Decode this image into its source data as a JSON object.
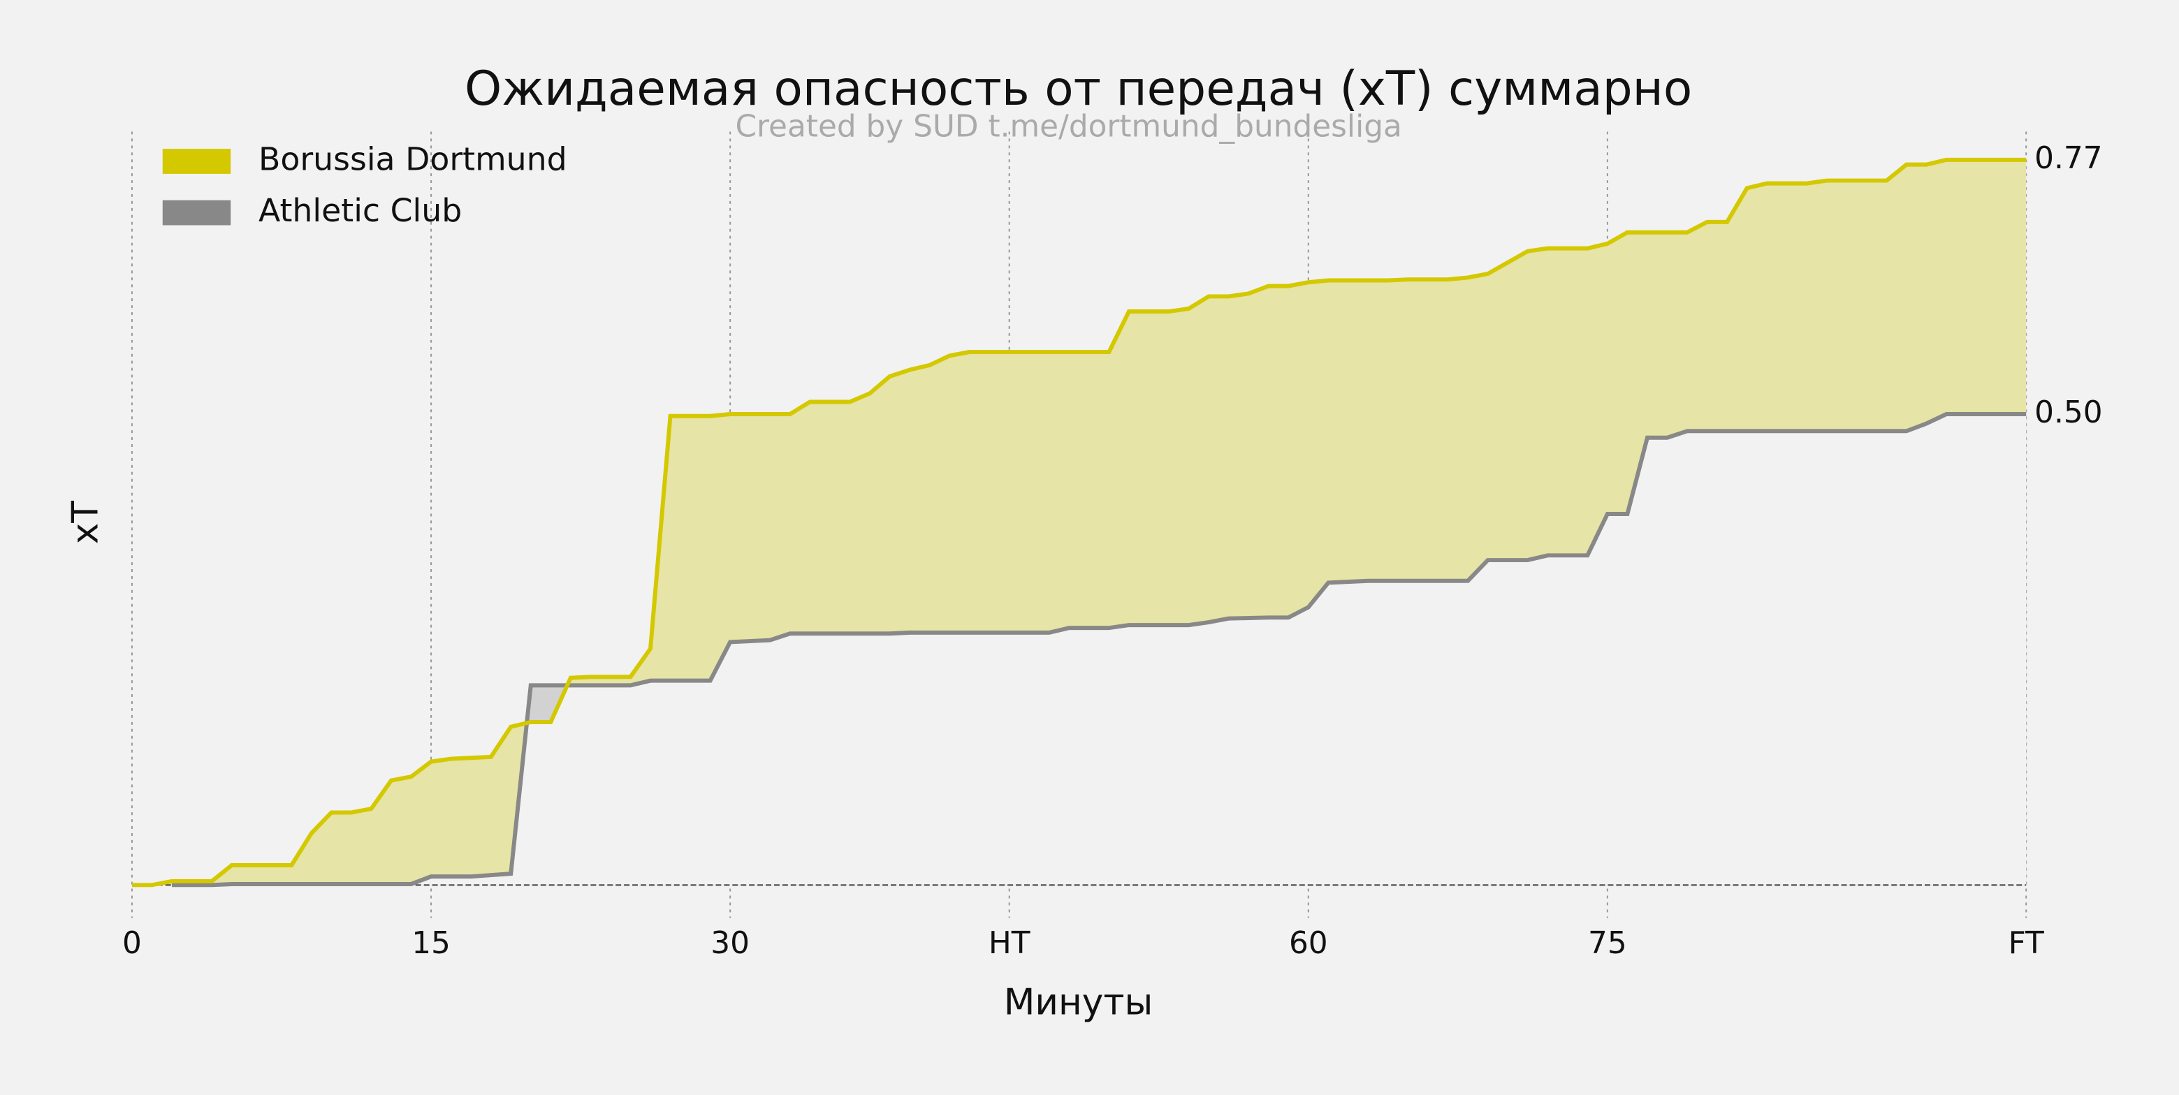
{
  "chart_data": {
    "type": "area-line",
    "title": "Ожидаемая опасность от передач (xT) суммарно",
    "subtitle": "Created by SUD t.me/dortmund_bundesliga",
    "xlabel": "Минуты",
    "ylabel": "xT",
    "xlim": [
      0,
      95
    ],
    "xticks": [
      0,
      15,
      30,
      {
        "value": 44,
        "label": "HT"
      },
      {
        "value": 59,
        "label": "60"
      },
      {
        "value": 74,
        "label": "75"
      },
      {
        "value": 95,
        "label": "FT"
      }
    ],
    "ylim": [
      -0.035,
      0.8
    ],
    "yticks": [
      {
        "value": 0.5,
        "label": "0.50"
      },
      {
        "value": 0.77,
        "label": "0.77"
      }
    ],
    "grid": true,
    "legend": "upper left",
    "series": [
      {
        "name": "Borussia Dortmund",
        "color": "#d4c800",
        "fill": "#e6e4a6",
        "x": [
          0,
          1,
          2,
          4,
          5,
          8,
          9,
          10,
          11,
          12,
          13,
          14,
          15,
          16,
          18,
          19,
          20,
          21,
          22,
          23,
          25,
          26,
          27,
          29,
          30,
          33,
          34,
          36,
          37,
          38,
          39,
          40,
          41,
          42,
          49,
          50,
          52,
          53,
          54,
          55,
          56,
          57,
          58,
          59,
          60,
          63,
          64,
          66,
          67,
          68,
          69,
          70,
          71,
          73,
          74,
          75,
          78,
          79,
          80,
          81,
          82,
          84,
          85,
          88,
          89,
          90,
          91,
          95
        ],
        "values": [
          0,
          0,
          0.004,
          0.004,
          0.021,
          0.021,
          0.055,
          0.077,
          0.077,
          0.081,
          0.111,
          0.115,
          0.131,
          0.134,
          0.136,
          0.168,
          0.173,
          0.173,
          0.22,
          0.221,
          0.221,
          0.251,
          0.498,
          0.498,
          0.5,
          0.5,
          0.513,
          0.513,
          0.522,
          0.54,
          0.547,
          0.552,
          0.562,
          0.566,
          0.566,
          0.609,
          0.609,
          0.612,
          0.625,
          0.625,
          0.628,
          0.636,
          0.636,
          0.64,
          0.642,
          0.642,
          0.643,
          0.643,
          0.645,
          0.649,
          0.661,
          0.673,
          0.676,
          0.676,
          0.681,
          0.693,
          0.693,
          0.704,
          0.704,
          0.74,
          0.745,
          0.745,
          0.748,
          0.748,
          0.765,
          0.765,
          0.77,
          0.77
        ]
      },
      {
        "name": "Athletic Club",
        "color": "#888888",
        "fill": "#d2d2d2",
        "x": [
          2,
          4,
          5,
          8,
          14,
          15,
          17,
          19,
          20,
          21,
          25,
          26,
          29,
          30,
          32,
          33,
          38,
          39,
          46,
          47,
          49,
          50,
          53,
          54,
          55,
          57,
          58,
          59,
          60,
          62,
          67,
          68,
          70,
          71,
          73,
          74,
          75,
          76,
          77,
          78,
          89,
          90,
          91,
          95
        ],
        "values": [
          0,
          0,
          0.001,
          0.001,
          0.001,
          0.009,
          0.009,
          0.012,
          0.212,
          0.212,
          0.212,
          0.217,
          0.217,
          0.258,
          0.26,
          0.267,
          0.267,
          0.268,
          0.268,
          0.273,
          0.273,
          0.276,
          0.276,
          0.279,
          0.283,
          0.284,
          0.284,
          0.295,
          0.321,
          0.323,
          0.323,
          0.345,
          0.345,
          0.35,
          0.35,
          0.394,
          0.394,
          0.475,
          0.475,
          0.482,
          0.482,
          0.49,
          0.5,
          0.5
        ]
      }
    ]
  }
}
